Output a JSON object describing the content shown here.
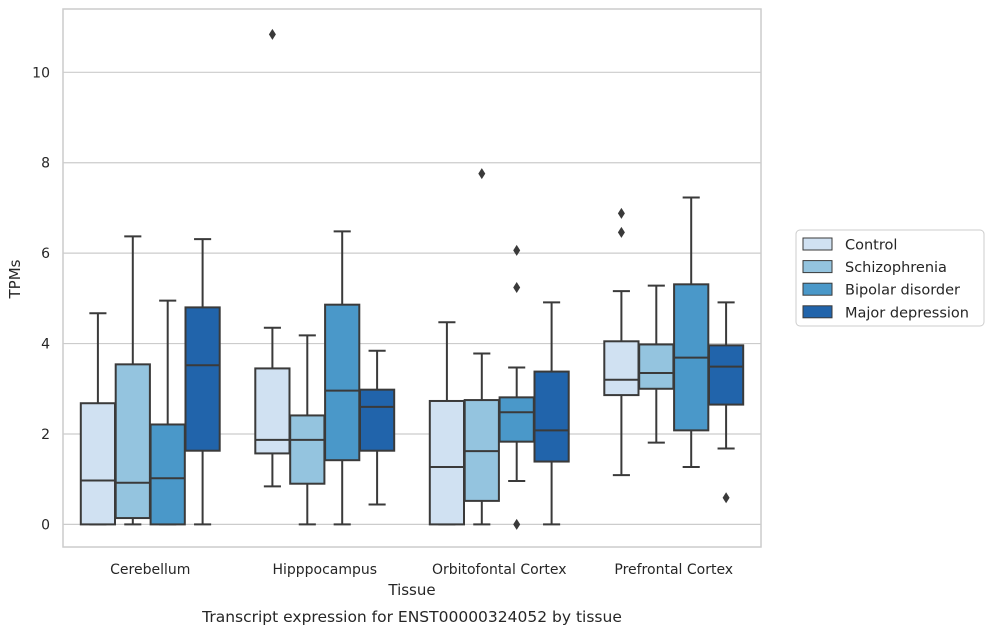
{
  "chart_data": {
    "type": "boxplot",
    "title": "",
    "caption": "Transcript expression for ENST00000324052 by tissue",
    "xlabel": "Tissue",
    "ylabel": "TPMs",
    "ylim": [
      -0.5,
      11.4
    ],
    "yticks": [
      0,
      2,
      4,
      6,
      8,
      10
    ],
    "grid": "horizontal",
    "legend_position": "right",
    "categories": [
      "Cerebellum",
      "Hipppocampus",
      "Orbitofontal Cortex",
      "Prefrontal Cortex"
    ],
    "series": [
      {
        "name": "Control",
        "color": "#d0e1f2",
        "boxes": [
          {
            "min": 0,
            "q1": 0,
            "median": 0.97,
            "q3": 2.68,
            "max": 4.67,
            "outliers": []
          },
          {
            "min": 0.84,
            "q1": 1.57,
            "median": 1.87,
            "q3": 3.45,
            "max": 4.35,
            "outliers": [
              10.84
            ]
          },
          {
            "min": 0,
            "q1": 0,
            "median": 1.27,
            "q3": 2.73,
            "max": 4.47,
            "outliers": []
          },
          {
            "min": 1.09,
            "q1": 2.86,
            "median": 3.2,
            "q3": 4.05,
            "max": 5.16,
            "outliers": [
              6.46,
              6.88
            ]
          }
        ]
      },
      {
        "name": "Schizophrenia",
        "color": "#94c4df",
        "boxes": [
          {
            "min": 0,
            "q1": 0.14,
            "median": 0.92,
            "q3": 3.54,
            "max": 6.37,
            "outliers": []
          },
          {
            "min": 0,
            "q1": 0.9,
            "median": 1.87,
            "q3": 2.41,
            "max": 4.18,
            "outliers": []
          },
          {
            "min": 0,
            "q1": 0.52,
            "median": 1.62,
            "q3": 2.75,
            "max": 3.78,
            "outliers": [
              7.76
            ]
          },
          {
            "min": 1.81,
            "q1": 3.0,
            "median": 3.35,
            "q3": 3.98,
            "max": 5.28,
            "outliers": []
          }
        ]
      },
      {
        "name": "Bipolar disorder",
        "color": "#4a98c9",
        "boxes": [
          {
            "min": 0,
            "q1": 0,
            "median": 1.02,
            "q3": 2.21,
            "max": 4.95,
            "outliers": []
          },
          {
            "min": 0,
            "q1": 1.42,
            "median": 2.96,
            "q3": 4.86,
            "max": 6.48,
            "outliers": []
          },
          {
            "min": 0.96,
            "q1": 1.83,
            "median": 2.48,
            "q3": 2.81,
            "max": 3.47,
            "outliers": [
              0,
              5.24,
              6.06
            ]
          },
          {
            "min": 1.27,
            "q1": 2.08,
            "median": 3.69,
            "q3": 5.31,
            "max": 7.23,
            "outliers": []
          }
        ]
      },
      {
        "name": "Major depression",
        "color": "#2164ab",
        "boxes": [
          {
            "min": 0,
            "q1": 1.63,
            "median": 3.52,
            "q3": 4.8,
            "max": 6.31,
            "outliers": []
          },
          {
            "min": 0.44,
            "q1": 1.63,
            "median": 2.6,
            "q3": 2.98,
            "max": 3.84,
            "outliers": []
          },
          {
            "min": 0,
            "q1": 1.39,
            "median": 2.08,
            "q3": 3.38,
            "max": 4.91,
            "outliers": []
          },
          {
            "min": 1.68,
            "q1": 2.65,
            "median": 3.49,
            "q3": 3.96,
            "max": 4.91,
            "outliers": [
              0.59
            ]
          }
        ]
      }
    ]
  }
}
